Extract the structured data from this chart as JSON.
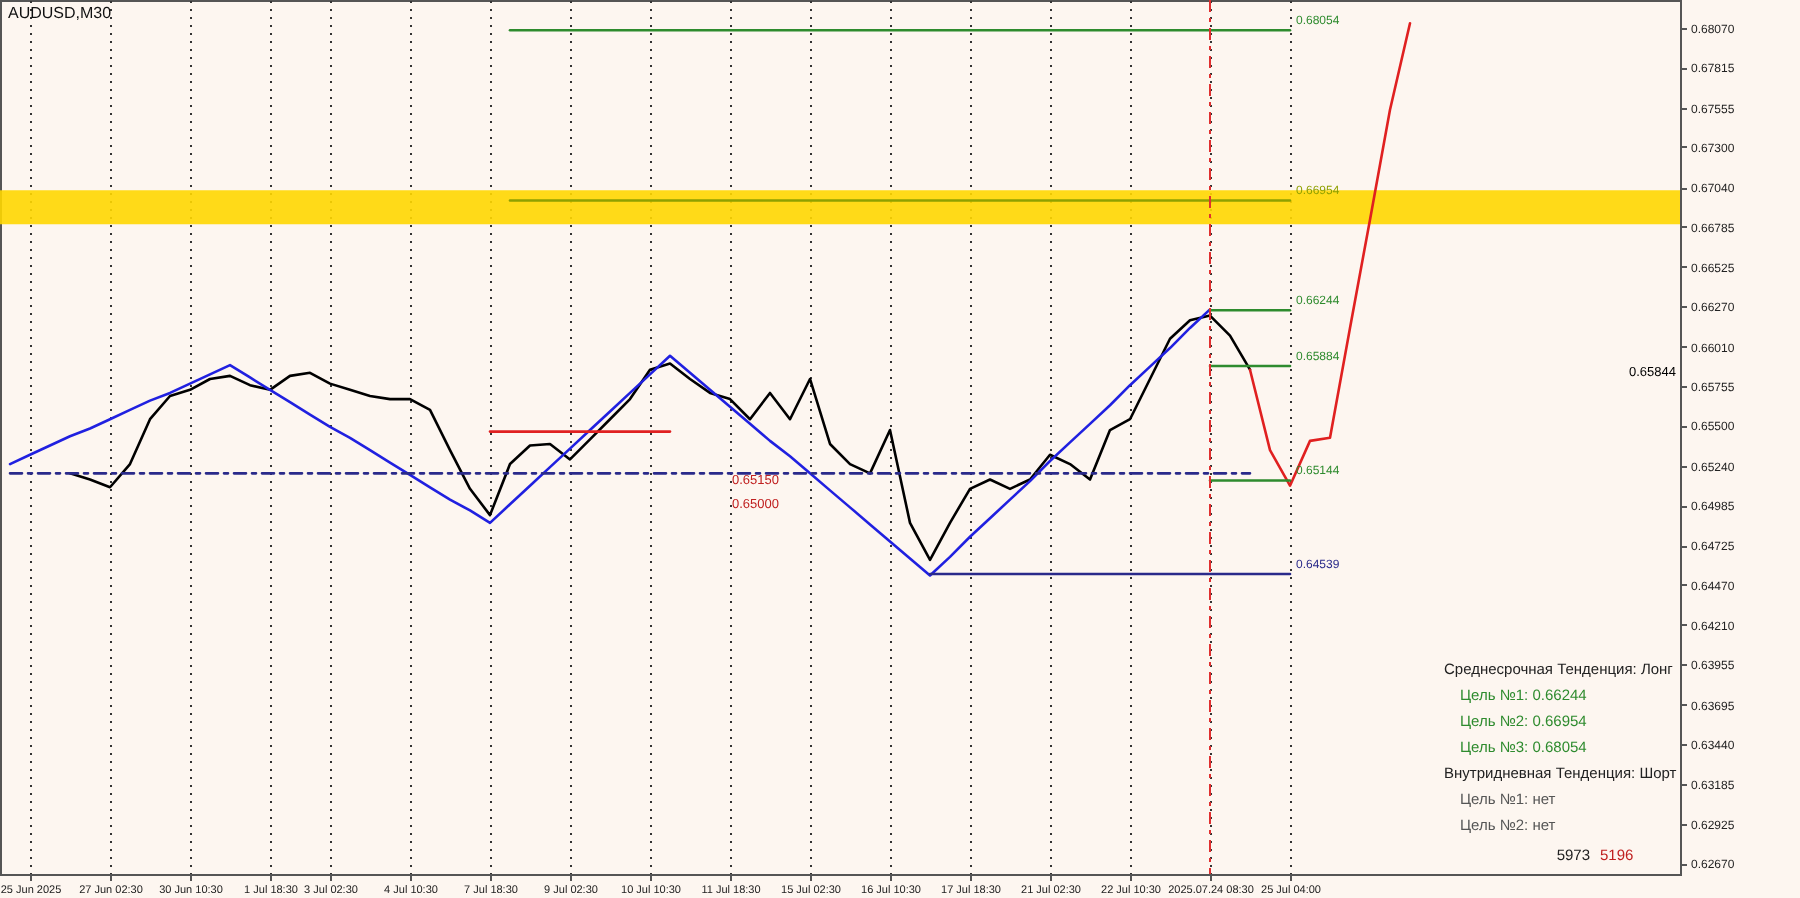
{
  "chart_data": {
    "type": "line",
    "title": "AUDUSD,M30",
    "categories": [
      null,
      "25 Jun 2025",
      null,
      null,
      null,
      "27 Jun 02:30",
      null,
      null,
      null,
      "30 Jun 10:30",
      null,
      null,
      null,
      "1 Jul 18:30",
      null,
      null,
      "3 Jul 02:30",
      null,
      null,
      null,
      "4 Jul 10:30",
      null,
      null,
      null,
      "7 Jul 18:30",
      null,
      null,
      null,
      "9 Jul 02:30",
      null,
      null,
      null,
      "10 Jul 10:30",
      null,
      null,
      null,
      "11 Jul 18:30",
      null,
      null,
      null,
      "15 Jul 02:30",
      null,
      null,
      null,
      "16 Jul 10:30",
      null,
      null,
      null,
      "17 Jul 18:30",
      null,
      null,
      null,
      "21 Jul 02:30",
      null,
      null,
      null,
      "22 Jul 10:30",
      null,
      null,
      null,
      "2025.07.24 08:30",
      null,
      null,
      null,
      "25 Jul 04:00",
      null,
      null,
      null,
      null,
      null,
      null,
      null,
      null,
      null,
      null,
      null,
      null,
      null,
      null,
      null,
      null,
      null,
      null,
      null
    ],
    "ylim": [
      0.626,
      0.6825
    ],
    "yticks": [
      {
        "value": 0.6807,
        "label": "0.68070"
      },
      0.67815,
      0.67555,
      {
        "value": 0.673,
        "label": "0.67300"
      },
      {
        "value": 0.6704,
        "label": "0.67040"
      },
      0.66785,
      0.66525,
      {
        "value": 0.6627,
        "label": "0.66270"
      },
      {
        "value": 0.6601,
        "label": "0.66010"
      },
      0.65755,
      {
        "value": 0.655,
        "label": "0.65500"
      },
      {
        "value": 0.6524,
        "label": "0.65240"
      },
      0.64985,
      0.64725,
      {
        "value": 0.6447,
        "label": "0.64470"
      },
      {
        "value": 0.6421,
        "label": "0.64210"
      },
      0.63955,
      0.63695,
      {
        "value": 0.6344,
        "label": "0.63440"
      },
      0.63185,
      0.62925,
      {
        "value": 0.6267,
        "label": "0.62670"
      }
    ],
    "grid": "x",
    "marker": "none",
    "bands": [
      {
        "axis": "y",
        "from": 0.668,
        "to": 0.6702,
        "color": "#ffd700"
      }
    ],
    "ref_lines": [
      {
        "axis": "x",
        "value": "2025.07.24 08:30",
        "color": "#e03030",
        "line_style": "dashed"
      }
    ],
    "series": [
      {
        "color": "#000000",
        "values": [
          null,
          null,
          null,
          0.6519,
          0.6515,
          0.651,
          0.6525,
          0.6554,
          0.6569,
          0.6573,
          0.658,
          0.6582,
          0.6576,
          0.6573,
          0.6582,
          0.6584,
          0.6577,
          0.6573,
          0.6569,
          0.6567,
          0.6567,
          0.656,
          0.6534,
          0.6509,
          0.6492,
          0.6525,
          0.6537,
          0.6538,
          0.6528,
          0.6541,
          0.6554,
          0.6567,
          0.6586,
          0.659,
          0.658,
          0.6571,
          0.6567,
          0.6554,
          0.6571,
          0.6554,
          0.658,
          0.6538,
          0.6525,
          0.6519,
          0.6547,
          0.6487,
          0.6463,
          0.6487,
          0.6509,
          0.6515,
          0.6509,
          0.6515,
          0.6531,
          0.6525,
          0.6515,
          0.6547,
          0.6554,
          0.658,
          0.6606,
          0.6618,
          0.6621,
          0.6608,
          0.6586,
          null,
          null,
          null,
          null,
          null,
          null,
          null,
          null,
          null,
          null,
          null,
          null,
          null,
          null,
          null,
          null,
          null,
          null,
          null,
          null,
          null
        ]
      },
      {
        "color": "#e02020",
        "values": [
          null,
          null,
          null,
          null,
          null,
          null,
          null,
          null,
          null,
          null,
          null,
          null,
          null,
          null,
          null,
          null,
          null,
          null,
          null,
          null,
          null,
          null,
          null,
          null,
          null,
          null,
          null,
          null,
          null,
          null,
          null,
          null,
          null,
          null,
          null,
          null,
          null,
          null,
          null,
          null,
          null,
          null,
          null,
          null,
          null,
          null,
          null,
          null,
          null,
          null,
          null,
          null,
          null,
          null,
          null,
          null,
          null,
          null,
          null,
          null,
          null,
          null,
          0.6586,
          0.6534,
          0.6511,
          0.654,
          0.6542,
          0.6613,
          0.6683,
          0.6754,
          0.681,
          null,
          null,
          null,
          null,
          null,
          null,
          null,
          null,
          null,
          null,
          null,
          null,
          null
        ]
      },
      {
        "color": "#2020e0",
        "values": [
          0.6525,
          0.6531,
          0.6537,
          0.6543,
          0.6548,
          0.6554,
          0.656,
          0.6566,
          0.6571,
          0.6577,
          0.6583,
          0.6589,
          0.6581,
          0.6573,
          0.6565,
          0.6557,
          0.6549,
          0.6542,
          0.6534,
          0.6526,
          0.6518,
          0.651,
          0.6502,
          0.6495,
          0.6487,
          0.6499,
          0.6511,
          0.6523,
          0.6535,
          0.6547,
          0.6559,
          0.6571,
          0.6583,
          0.6595,
          0.6584,
          0.6573,
          0.6562,
          0.6551,
          0.654,
          0.653,
          0.6519,
          0.6508,
          0.6497,
          0.6486,
          0.6475,
          0.6464,
          0.6453,
          0.6465,
          0.6478,
          0.649,
          0.6502,
          0.6514,
          0.6527,
          0.6539,
          0.6551,
          0.6563,
          0.6576,
          0.6588,
          0.66,
          0.6613,
          0.6625,
          null,
          null,
          null,
          null,
          null,
          null,
          null,
          null,
          null,
          null,
          null,
          null,
          null,
          null,
          null,
          null,
          null,
          null,
          null,
          null,
          null,
          null,
          null
        ]
      },
      {
        "color": "#2a2a8a",
        "line_style": "dashed",
        "values": [
          0.6519,
          0.6519,
          0.6519,
          0.6519,
          0.6519,
          0.6519,
          0.6519,
          0.6519,
          0.6519,
          0.6519,
          0.6519,
          0.6519,
          0.6519,
          0.6519,
          0.6519,
          0.6519,
          0.6519,
          0.6519,
          0.6519,
          0.6519,
          0.6519,
          0.6519,
          0.6519,
          0.6519,
          0.6519,
          0.6519,
          0.6519,
          0.6519,
          0.6519,
          0.6519,
          0.6519,
          0.6519,
          0.6519,
          0.6519,
          0.6519,
          0.6519,
          0.6519,
          0.6519,
          0.6519,
          0.6519,
          0.6519,
          0.6519,
          0.6519,
          0.6519,
          0.6519,
          0.6519,
          0.6519,
          0.6519,
          0.6519,
          0.6519,
          0.6519,
          0.6519,
          0.6519,
          0.6519,
          0.6519,
          0.6519,
          0.6519,
          0.6519,
          0.6519,
          0.6519,
          0.6519,
          0.6519,
          0.6519,
          null,
          null,
          null,
          null,
          null,
          null,
          null,
          null,
          null,
          null,
          null,
          null,
          null,
          null,
          null,
          null,
          null,
          null,
          null,
          null,
          null
        ]
      },
      {
        "color": "#e02020",
        "values": [
          null,
          null,
          null,
          null,
          null,
          null,
          null,
          null,
          null,
          null,
          null,
          null,
          null,
          null,
          null,
          null,
          null,
          null,
          null,
          null,
          null,
          null,
          null,
          null,
          0.6546,
          0.6546,
          0.6546,
          0.6546,
          0.6546,
          0.6546,
          0.6546,
          0.6546,
          0.6546,
          0.6546,
          null,
          null,
          null,
          null,
          null,
          null,
          null,
          null,
          null,
          null,
          null,
          null,
          null,
          null,
          null,
          null,
          null,
          null,
          null,
          null,
          null,
          null,
          null,
          null,
          null,
          null,
          null,
          null,
          null,
          null,
          null,
          null,
          null,
          null,
          null,
          null,
          null,
          null,
          null,
          null,
          null,
          null,
          null,
          null,
          null,
          null,
          null,
          null,
          null,
          null
        ]
      },
      {
        "color": "#2e8b2e",
        "values": [
          null,
          null,
          null,
          null,
          null,
          null,
          null,
          null,
          null,
          null,
          null,
          null,
          null,
          null,
          null,
          null,
          null,
          null,
          null,
          null,
          null,
          null,
          null,
          null,
          null,
          0.68054,
          0.68054,
          0.68054,
          0.68054,
          0.68054,
          0.68054,
          0.68054,
          0.68054,
          0.68054,
          0.68054,
          0.68054,
          0.68054,
          0.68054,
          0.68054,
          0.68054,
          0.68054,
          0.68054,
          0.68054,
          0.68054,
          0.68054,
          0.68054,
          0.68054,
          0.68054,
          0.68054,
          0.68054,
          0.68054,
          0.68054,
          0.68054,
          0.68054,
          0.68054,
          0.68054,
          0.68054,
          0.68054,
          0.68054,
          0.68054,
          0.68054,
          0.68054,
          0.68054,
          0.68054,
          0.68054,
          null,
          null,
          null,
          null,
          null,
          null,
          null,
          null,
          null,
          null,
          null,
          null,
          null,
          null,
          null,
          null,
          null,
          null,
          null
        ],
        "value_labels": [
          null,
          null,
          null,
          null,
          null,
          null,
          null,
          null,
          null,
          null,
          null,
          null,
          null,
          null,
          null,
          null,
          null,
          null,
          null,
          null,
          null,
          null,
          null,
          null,
          null,
          null,
          null,
          null,
          null,
          null,
          null,
          null,
          null,
          null,
          null,
          null,
          null,
          null,
          null,
          null,
          null,
          null,
          null,
          null,
          null,
          null,
          null,
          null,
          null,
          null,
          null,
          null,
          null,
          null,
          null,
          null,
          null,
          null,
          null,
          null,
          null,
          null,
          null,
          null,
          "0.68054",
          null,
          null,
          null,
          null,
          null,
          null,
          null,
          null,
          null,
          null,
          null,
          null,
          null,
          null,
          null,
          null,
          null,
          null,
          null
        ]
      },
      {
        "color": "#8fa000",
        "values": [
          null,
          null,
          null,
          null,
          null,
          null,
          null,
          null,
          null,
          null,
          null,
          null,
          null,
          null,
          null,
          null,
          null,
          null,
          null,
          null,
          null,
          null,
          null,
          null,
          null,
          0.66954,
          0.66954,
          0.66954,
          0.66954,
          0.66954,
          0.66954,
          0.66954,
          0.66954,
          0.66954,
          0.66954,
          0.66954,
          0.66954,
          0.66954,
          0.66954,
          0.66954,
          0.66954,
          0.66954,
          0.66954,
          0.66954,
          0.66954,
          0.66954,
          0.66954,
          0.66954,
          0.66954,
          0.66954,
          0.66954,
          0.66954,
          0.66954,
          0.66954,
          0.66954,
          0.66954,
          0.66954,
          0.66954,
          0.66954,
          0.66954,
          0.66954,
          0.66954,
          0.66954,
          0.66954,
          0.66954,
          null,
          null,
          null,
          null,
          null,
          null,
          null,
          null,
          null,
          null,
          null,
          null,
          null,
          null,
          null,
          null,
          null,
          null,
          null
        ],
        "value_labels": [
          null,
          null,
          null,
          null,
          null,
          null,
          null,
          null,
          null,
          null,
          null,
          null,
          null,
          null,
          null,
          null,
          null,
          null,
          null,
          null,
          null,
          null,
          null,
          null,
          null,
          null,
          null,
          null,
          null,
          null,
          null,
          null,
          null,
          null,
          null,
          null,
          null,
          null,
          null,
          null,
          null,
          null,
          null,
          null,
          null,
          null,
          null,
          null,
          null,
          null,
          null,
          null,
          null,
          null,
          null,
          null,
          null,
          null,
          null,
          null,
          null,
          null,
          null,
          null,
          "0.66954",
          null,
          null,
          null,
          null,
          null,
          null,
          null,
          null,
          null,
          null,
          null,
          null,
          null,
          null,
          null,
          null,
          null,
          null,
          null
        ]
      },
      {
        "color": "#2e8b2e",
        "values": [
          null,
          null,
          null,
          null,
          null,
          null,
          null,
          null,
          null,
          null,
          null,
          null,
          null,
          null,
          null,
          null,
          null,
          null,
          null,
          null,
          null,
          null,
          null,
          null,
          null,
          null,
          null,
          null,
          null,
          null,
          null,
          null,
          null,
          null,
          null,
          null,
          null,
          null,
          null,
          null,
          null,
          null,
          null,
          null,
          null,
          null,
          null,
          null,
          null,
          null,
          null,
          null,
          null,
          null,
          null,
          null,
          null,
          null,
          null,
          null,
          0.66244,
          0.66244,
          0.66244,
          0.66244,
          0.66244,
          null,
          null,
          null,
          null,
          null,
          null,
          null,
          null,
          null,
          null,
          null,
          null,
          null,
          null,
          null,
          null,
          null,
          null,
          null
        ],
        "value_labels": [
          null,
          null,
          null,
          null,
          null,
          null,
          null,
          null,
          null,
          null,
          null,
          null,
          null,
          null,
          null,
          null,
          null,
          null,
          null,
          null,
          null,
          null,
          null,
          null,
          null,
          null,
          null,
          null,
          null,
          null,
          null,
          null,
          null,
          null,
          null,
          null,
          null,
          null,
          null,
          null,
          null,
          null,
          null,
          null,
          null,
          null,
          null,
          null,
          null,
          null,
          null,
          null,
          null,
          null,
          null,
          null,
          null,
          null,
          null,
          null,
          null,
          null,
          null,
          null,
          "0.66244",
          null,
          null,
          null,
          null,
          null,
          null,
          null,
          null,
          null,
          null,
          null,
          null,
          null,
          null,
          null,
          null,
          null,
          null,
          null
        ]
      },
      {
        "color": "#2e8b2e",
        "values": [
          null,
          null,
          null,
          null,
          null,
          null,
          null,
          null,
          null,
          null,
          null,
          null,
          null,
          null,
          null,
          null,
          null,
          null,
          null,
          null,
          null,
          null,
          null,
          null,
          null,
          null,
          null,
          null,
          null,
          null,
          null,
          null,
          null,
          null,
          null,
          null,
          null,
          null,
          null,
          null,
          null,
          null,
          null,
          null,
          null,
          null,
          null,
          null,
          null,
          null,
          null,
          null,
          null,
          null,
          null,
          null,
          null,
          null,
          null,
          null,
          0.65884,
          0.65884,
          0.65884,
          0.65884,
          0.65884,
          null,
          null,
          null,
          null,
          null,
          null,
          null,
          null,
          null,
          null,
          null,
          null,
          null,
          null,
          null,
          null,
          null,
          null,
          null
        ],
        "value_labels": [
          null,
          null,
          null,
          null,
          null,
          null,
          null,
          null,
          null,
          null,
          null,
          null,
          null,
          null,
          null,
          null,
          null,
          null,
          null,
          null,
          null,
          null,
          null,
          null,
          null,
          null,
          null,
          null,
          null,
          null,
          null,
          null,
          null,
          null,
          null,
          null,
          null,
          null,
          null,
          null,
          null,
          null,
          null,
          null,
          null,
          null,
          null,
          null,
          null,
          null,
          null,
          null,
          null,
          null,
          null,
          null,
          null,
          null,
          null,
          null,
          null,
          null,
          null,
          null,
          "0.65884",
          null,
          null,
          null,
          null,
          null,
          null,
          null,
          null,
          null,
          null,
          null,
          null,
          null,
          null,
          null,
          null,
          null,
          null,
          null
        ]
      },
      {
        "color": "#2e8b2e",
        "values": [
          null,
          null,
          null,
          null,
          null,
          null,
          null,
          null,
          null,
          null,
          null,
          null,
          null,
          null,
          null,
          null,
          null,
          null,
          null,
          null,
          null,
          null,
          null,
          null,
          null,
          null,
          null,
          null,
          null,
          null,
          null,
          null,
          null,
          null,
          null,
          null,
          null,
          null,
          null,
          null,
          null,
          null,
          null,
          null,
          null,
          null,
          null,
          null,
          null,
          null,
          null,
          null,
          null,
          null,
          null,
          null,
          null,
          null,
          null,
          null,
          0.65144,
          0.65144,
          0.65144,
          0.65144,
          0.65144,
          null,
          null,
          null,
          null,
          null,
          null,
          null,
          null,
          null,
          null,
          null,
          null,
          null,
          null,
          null,
          null,
          null,
          null,
          null
        ],
        "value_labels": [
          null,
          null,
          null,
          null,
          null,
          null,
          null,
          null,
          null,
          null,
          null,
          null,
          null,
          null,
          null,
          null,
          null,
          null,
          null,
          null,
          null,
          null,
          null,
          null,
          null,
          null,
          null,
          null,
          null,
          null,
          null,
          null,
          null,
          null,
          null,
          null,
          null,
          null,
          null,
          null,
          null,
          null,
          null,
          null,
          null,
          null,
          null,
          null,
          null,
          null,
          null,
          null,
          null,
          null,
          null,
          null,
          null,
          null,
          null,
          null,
          null,
          null,
          null,
          null,
          "0.65144",
          null,
          null,
          null,
          null,
          null,
          null,
          null,
          null,
          null,
          null,
          null,
          null,
          null,
          null,
          null,
          null,
          null,
          null,
          null
        ]
      },
      {
        "color": "#2a2a8a",
        "values": [
          null,
          null,
          null,
          null,
          null,
          null,
          null,
          null,
          null,
          null,
          null,
          null,
          null,
          null,
          null,
          null,
          null,
          null,
          null,
          null,
          null,
          null,
          null,
          null,
          null,
          null,
          null,
          null,
          null,
          null,
          null,
          null,
          null,
          null,
          null,
          null,
          null,
          null,
          null,
          null,
          null,
          null,
          null,
          null,
          null,
          null,
          0.64539,
          0.64539,
          0.64539,
          0.64539,
          0.64539,
          0.64539,
          0.64539,
          0.64539,
          0.64539,
          0.64539,
          0.64539,
          0.64539,
          0.64539,
          0.64539,
          0.64539,
          0.64539,
          0.64539,
          0.64539,
          0.64539,
          null,
          null,
          null,
          null,
          null,
          null,
          null,
          null,
          null,
          null,
          null,
          null,
          null,
          null,
          null,
          null,
          null,
          null,
          null
        ],
        "value_labels": [
          null,
          null,
          null,
          null,
          null,
          null,
          null,
          null,
          null,
          null,
          null,
          null,
          null,
          null,
          null,
          null,
          null,
          null,
          null,
          null,
          null,
          null,
          null,
          null,
          null,
          null,
          null,
          null,
          null,
          null,
          null,
          null,
          null,
          null,
          null,
          null,
          null,
          null,
          null,
          null,
          null,
          null,
          null,
          null,
          null,
          null,
          null,
          null,
          null,
          null,
          null,
          null,
          null,
          null,
          null,
          null,
          null,
          null,
          null,
          null,
          null,
          null,
          null,
          null,
          "0.64539",
          null,
          null,
          null,
          null,
          null,
          null,
          null,
          null,
          null,
          null,
          null,
          null,
          null,
          null,
          null,
          null,
          null,
          null,
          null
        ]
      }
    ],
    "annotations": [
      "Среднесрочная Тенденция: Лонг",
      "Цель №1: 0.66244",
      "Цель №2: 0.66954",
      "Цель №3: 0.68054",
      "Внутридневная Тенденция: Шорт",
      "Цель №1: нет",
      "Цель №2: нет",
      "5973",
      "5196",
      "0.65150",
      "0.65000",
      "0.65844"
    ]
  }
}
